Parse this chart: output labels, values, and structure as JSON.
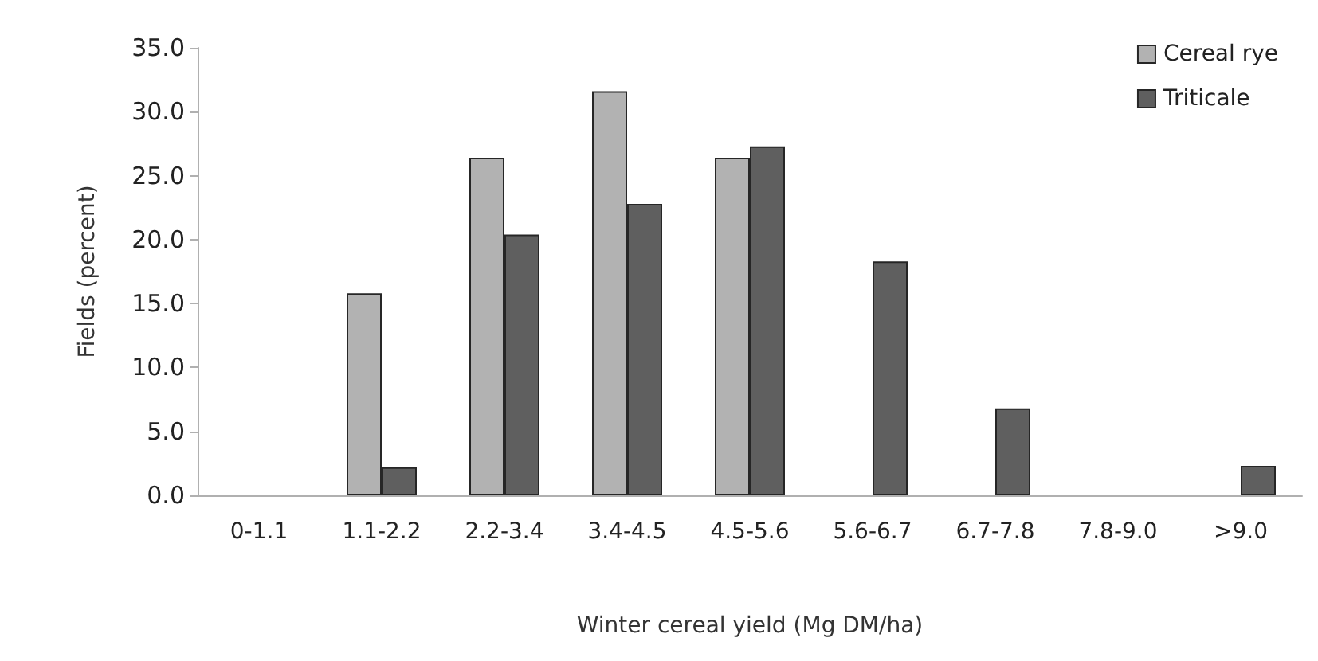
{
  "chart_data": {
    "type": "bar",
    "xlabel": "Winter cereal yield (Mg DM/ha)",
    "ylabel": "Fields (percent)",
    "categories": [
      "0-1.1",
      "1.1-2.2",
      "2.2-3.4",
      "3.4-4.5",
      "4.5-5.6",
      "5.6-6.7",
      "6.7-7.8",
      "7.8-9.0",
      ">9.0"
    ],
    "series": [
      {
        "name": "Cereal rye",
        "color": "#b2b2b2",
        "values": [
          0,
          15.8,
          26.4,
          31.6,
          26.4,
          0,
          0,
          0,
          0
        ]
      },
      {
        "name": "Triticale",
        "color": "#5f5f5f",
        "values": [
          0,
          2.2,
          20.4,
          22.8,
          27.3,
          18.3,
          6.8,
          0,
          2.3
        ]
      }
    ],
    "ylim": [
      0,
      35
    ],
    "yticks": [
      {
        "value": 0,
        "label": "0.0"
      },
      {
        "value": 5,
        "label": "5.0"
      },
      {
        "value": 10,
        "label": "10.0"
      },
      {
        "value": 15,
        "label": "15.0"
      },
      {
        "value": 20,
        "label": "20.0"
      },
      {
        "value": 25,
        "label": "25.0"
      },
      {
        "value": 30,
        "label": "30.0"
      },
      {
        "value": 35,
        "label": "35.0"
      }
    ],
    "grid": false,
    "legend": "top right"
  }
}
